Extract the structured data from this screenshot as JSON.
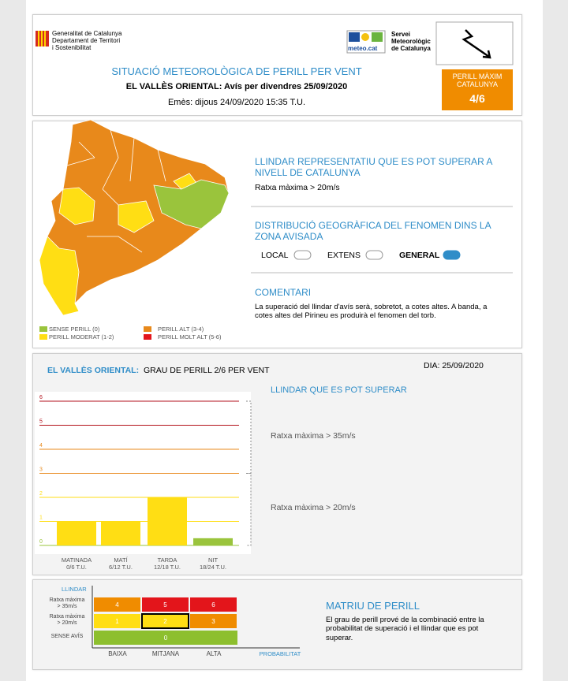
{
  "header": {
    "org_left": "Generalitat de Catalunya\nDepartament de Territori\ni Sostenibilitat",
    "logo_text": "meteo.cat",
    "org_right": "Servei\nMeteorològic\nde Catalunya",
    "title": "SITUACIÓ METEOROLÒGICA DE PERILL PER VENT",
    "subtitle": "EL VALLÈS ORIENTAL: Avís per divendres 25/09/2020",
    "issued": "Emès: dijous 24/09/2020 15:35 T.U.",
    "max_danger_label": "PERILL MÀXIM\nCATALUNYA",
    "max_danger_level": "4/6"
  },
  "map_legend": [
    {
      "label": "SENSE PERILL (0)",
      "color": "#9ac43c"
    },
    {
      "label": "PERILL MODERAT (1-2)",
      "color": "#ffde14"
    },
    {
      "label": "PERILL ALT (3-4)",
      "color": "#e8891b"
    },
    {
      "label": "PERILL MOLT ALT (5-6)",
      "color": "#e3151b"
    }
  ],
  "threshold_section": {
    "title": "LLINDAR REPRESENTATIU QUE ES POT SUPERAR A NIVELL DE CATALUNYA",
    "text": "Ratxa màxima > 20m/s"
  },
  "distribution_section": {
    "title": "DISTRIBUCIÓ GEOGRÀFICA DEL FENOMEN DINS LA ZONA AVISADA",
    "options": [
      "LOCAL",
      "EXTENS",
      "GENERAL"
    ],
    "selected": 2
  },
  "comment_section": {
    "title": "COMENTARI",
    "text": "La superació del llindar d'avís serà, sobretot, a cotes altes. A banda, a cotes altes del Pirineu es produirà el fenomen del torb."
  },
  "chart_data": {
    "type": "bar",
    "region": "EL VALLÈS ORIENTAL:",
    "title": "GRAU DE PERILL 2/6 PER VENT",
    "date": "DIA: 25/09/2020",
    "categories": [
      "MATINADA",
      "MATÍ",
      "TARDA",
      "NIT"
    ],
    "category_sublabels": [
      "0/6 T.U.",
      "6/12 T.U.",
      "12/18 T.U.",
      "18/24 T.U."
    ],
    "values": [
      1,
      1,
      2,
      0.3
    ],
    "colors": [
      "#ffde14",
      "#ffde14",
      "#ffde14",
      "#9ac43c"
    ],
    "ylim": [
      0,
      6
    ],
    "yticks": [
      0,
      1,
      2,
      3,
      4,
      5,
      6
    ],
    "tick_colors": [
      "#9ac43c",
      "#ffde14",
      "#ffde14",
      "#e8891b",
      "#e8891b",
      "#b3121c",
      "#b3121c"
    ],
    "grid": true,
    "thresholds_title": "LLINDAR QUE ES POT SUPERAR",
    "thresholds": [
      {
        "text": "Ratxa màxima > 35m/s",
        "from": 3,
        "to": 6
      },
      {
        "text": "Ratxa màxima > 20m/s",
        "from": 0,
        "to": 3
      }
    ]
  },
  "matrix": {
    "title": "MATRIU DE PERILL",
    "text": "El grau de perill prové de la combinació entre la probabilitat de superació i el llindar que es pot superar.",
    "y_axis_label": "LLINDAR",
    "x_axis_label": "PROBABILITAT",
    "columns": [
      "BAIXA",
      "MITJANA",
      "ALTA"
    ],
    "rows": [
      {
        "label": "Ratxa màxima\n> 35m/s",
        "cells": [
          4,
          5,
          6
        ]
      },
      {
        "label": "Ratxa màxima\n> 20m/s",
        "cells": [
          1,
          2,
          3
        ]
      },
      {
        "label": "SENSE AVÍS",
        "cells": [
          0
        ]
      }
    ],
    "level_colors": [
      "#8dbf2e",
      "#ffde14",
      "#ffde14",
      "#f08c00",
      "#f08c00",
      "#e3151b",
      "#e3151b"
    ],
    "highlight": [
      1,
      1
    ]
  }
}
